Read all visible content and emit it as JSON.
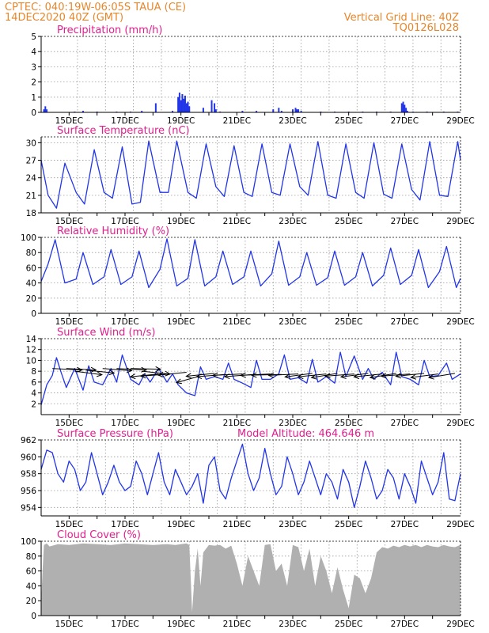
{
  "header": {
    "line1_left": "CPTEC:   040:19W-06:05S   TAUA (CE)",
    "line2_left": "14DEC2020 40Z (GMT)",
    "line2_right": "Vertical Grid Line: 40Z",
    "line3_right": "TQ0126L028"
  },
  "colors": {
    "header": "#e8862a",
    "title": "#e0208e",
    "series": "#2235e8",
    "cloud": "#b0b0b0",
    "grid": "#9a9a9a"
  },
  "x_tick_labels": [
    "15DEC",
    "17DEC",
    "19DEC",
    "21DEC",
    "23DEC",
    "25DEC",
    "27DEC",
    "29DEC"
  ],
  "chart_data": [
    {
      "type": "bar",
      "title": "Precipitation (mm/h)",
      "ylim": [
        0,
        5
      ],
      "yticks": [
        0,
        1,
        2,
        3,
        4,
        5
      ],
      "x": [
        14.1,
        14.15,
        14.2,
        15.2,
        15.5,
        16.0,
        16.7,
        17.2,
        17.6,
        18.1,
        18.7,
        18.9,
        18.95,
        19.0,
        19.05,
        19.1,
        19.15,
        19.2,
        19.25,
        19.3,
        19.8,
        20.1,
        20.2,
        20.25,
        20.4,
        21.2,
        21.7,
        22.3,
        22.5,
        22.6,
        23.0,
        23.1,
        23.15,
        23.2,
        23.3,
        24.0,
        24.5,
        25.0,
        25.5,
        26.0,
        26.5,
        26.9,
        26.95,
        27.0,
        27.05,
        27.1,
        27.3,
        27.8,
        28.4,
        28.9
      ],
      "values": [
        0.2,
        0.4,
        0.2,
        0.05,
        0.1,
        0.05,
        0.05,
        0.05,
        0.1,
        0.6,
        0.1,
        1.0,
        1.3,
        0.8,
        1.2,
        0.9,
        1.1,
        0.6,
        0.7,
        0.4,
        0.3,
        0.8,
        0.6,
        0.2,
        0.05,
        0.1,
        0.1,
        0.2,
        0.3,
        0.1,
        0.2,
        0.3,
        0.2,
        0.2,
        0.1,
        0.05,
        0.05,
        0.05,
        0.05,
        0.05,
        0.05,
        0.6,
        0.7,
        0.5,
        0.3,
        0.1,
        0.05,
        0.05,
        0.05,
        0.05
      ]
    },
    {
      "type": "line",
      "title": "Surface Temperature (nC)",
      "ylim": [
        18,
        31
      ],
      "yticks": [
        18,
        21,
        24,
        27,
        30
      ],
      "x": [
        14.0,
        14.25,
        14.55,
        14.85,
        15.25,
        15.55,
        15.9,
        16.25,
        16.55,
        16.9,
        17.25,
        17.55,
        17.85,
        18.25,
        18.55,
        18.85,
        19.25,
        19.55,
        19.9,
        20.25,
        20.55,
        20.9,
        21.25,
        21.55,
        21.9,
        22.25,
        22.55,
        22.9,
        23.25,
        23.55,
        23.9,
        24.25,
        24.55,
        24.9,
        25.25,
        25.55,
        25.9,
        26.25,
        26.55,
        26.9,
        27.25,
        27.55,
        27.9,
        28.25,
        28.55,
        28.9,
        29.0
      ],
      "values": [
        27,
        21,
        18.8,
        26.5,
        21.5,
        19.5,
        28.8,
        21.5,
        20.5,
        29.3,
        19.5,
        19.8,
        30.3,
        21.5,
        21.5,
        30.3,
        21.5,
        20.5,
        29.8,
        22.5,
        20.8,
        29.5,
        21.5,
        20.8,
        29.8,
        21.5,
        21,
        29.8,
        22.5,
        21,
        30.2,
        21,
        20.5,
        29.8,
        21.5,
        20.5,
        30,
        21.2,
        20.5,
        29.8,
        22,
        20.2,
        30.2,
        21,
        20.8,
        30.2,
        27
      ]
    },
    {
      "type": "line",
      "title": "Relative Humidity (%)",
      "ylim": [
        0,
        100
      ],
      "yticks": [
        0,
        20,
        40,
        60,
        80,
        100
      ],
      "x": [
        14.0,
        14.25,
        14.5,
        14.85,
        15.25,
        15.5,
        15.85,
        16.25,
        16.5,
        16.85,
        17.25,
        17.5,
        17.85,
        18.25,
        18.5,
        18.85,
        19.25,
        19.5,
        19.85,
        20.25,
        20.5,
        20.85,
        21.25,
        21.5,
        21.85,
        22.25,
        22.5,
        22.85,
        23.25,
        23.5,
        23.85,
        24.25,
        24.5,
        24.85,
        25.25,
        25.5,
        25.85,
        26.25,
        26.5,
        26.85,
        27.25,
        27.5,
        27.85,
        28.25,
        28.5,
        28.85,
        29.0
      ],
      "values": [
        42,
        65,
        97,
        40,
        45,
        80,
        38,
        48,
        84,
        38,
        48,
        82,
        34,
        58,
        98,
        36,
        46,
        97,
        36,
        48,
        82,
        38,
        48,
        82,
        36,
        52,
        95,
        37,
        48,
        80,
        37,
        47,
        82,
        37,
        48,
        80,
        36,
        50,
        86,
        38,
        50,
        84,
        34,
        55,
        88,
        34,
        46
      ]
    },
    {
      "type": "line",
      "title": "Surface Wind (m/s)",
      "ylim": [
        0,
        14
      ],
      "yticks": [
        2,
        4,
        6,
        8,
        10,
        12,
        14
      ],
      "x": [
        14.0,
        14.2,
        14.4,
        14.55,
        14.7,
        14.9,
        15.2,
        15.5,
        15.7,
        15.9,
        16.2,
        16.5,
        16.7,
        16.9,
        17.2,
        17.5,
        17.7,
        17.9,
        18.2,
        18.5,
        18.7,
        18.9,
        19.2,
        19.5,
        19.7,
        19.9,
        20.2,
        20.5,
        20.7,
        20.9,
        21.2,
        21.5,
        21.7,
        21.9,
        22.2,
        22.5,
        22.7,
        22.9,
        23.2,
        23.5,
        23.7,
        23.9,
        24.2,
        24.5,
        24.7,
        24.9,
        25.2,
        25.5,
        25.7,
        25.9,
        26.2,
        26.5,
        26.7,
        26.9,
        27.2,
        27.5,
        27.7,
        27.9,
        28.2,
        28.5,
        28.7,
        29.0
      ],
      "values": [
        1.8,
        5.5,
        7.2,
        10.5,
        8,
        5,
        8.5,
        4.5,
        9,
        6,
        5.5,
        8.5,
        6,
        11,
        6.5,
        5.5,
        7.5,
        6,
        8.5,
        6,
        7.5,
        5.5,
        4,
        3.5,
        8.8,
        6.5,
        7,
        6.5,
        9.5,
        6.5,
        5.8,
        5,
        10,
        6.5,
        6.5,
        7.5,
        11,
        6.5,
        6.8,
        5.8,
        10.2,
        6,
        7,
        5.8,
        11.5,
        7,
        10.8,
        6.5,
        8.5,
        6.5,
        7.8,
        5.5,
        11.5,
        7,
        6.5,
        5.5,
        10,
        7,
        7.2,
        9.5,
        6.5,
        7.5
      ],
      "vectors": [
        {
          "x": 14.4,
          "y": 8.5,
          "angle": 10
        },
        {
          "x": 14.9,
          "y": 8.5,
          "angle": 10
        },
        {
          "x": 15.2,
          "y": 8.0,
          "angle": 25
        },
        {
          "x": 15.6,
          "y": 8.2,
          "angle": 20
        },
        {
          "x": 16.2,
          "y": 8.5,
          "angle": 15
        },
        {
          "x": 16.7,
          "y": 8.5,
          "angle": 10
        },
        {
          "x": 17.2,
          "y": 8.5,
          "angle": 5
        },
        {
          "x": 17.6,
          "y": 8.0,
          "angle": 20
        },
        {
          "x": 18.2,
          "y": 7.5,
          "angle": 160
        },
        {
          "x": 18.6,
          "y": 7.5,
          "angle": 165
        },
        {
          "x": 19.2,
          "y": 7.8,
          "angle": 160
        },
        {
          "x": 19.6,
          "y": 7.0,
          "angle": 135
        },
        {
          "x": 20.2,
          "y": 7.6,
          "angle": 160
        },
        {
          "x": 20.6,
          "y": 7.4,
          "angle": 165
        },
        {
          "x": 21.2,
          "y": 7.5,
          "angle": 170
        },
        {
          "x": 21.6,
          "y": 7.4,
          "angle": 165
        },
        {
          "x": 22.2,
          "y": 7.5,
          "angle": 170
        },
        {
          "x": 22.6,
          "y": 7.4,
          "angle": 175
        },
        {
          "x": 23.2,
          "y": 7.5,
          "angle": 170
        },
        {
          "x": 23.7,
          "y": 7.6,
          "angle": 155
        },
        {
          "x": 24.2,
          "y": 7.5,
          "angle": 160
        },
        {
          "x": 24.6,
          "y": 7.6,
          "angle": 150
        },
        {
          "x": 25.2,
          "y": 7.5,
          "angle": 165
        },
        {
          "x": 25.7,
          "y": 7.6,
          "angle": 155
        },
        {
          "x": 26.2,
          "y": 7.5,
          "angle": 160
        },
        {
          "x": 26.7,
          "y": 7.6,
          "angle": 150
        },
        {
          "x": 27.2,
          "y": 7.5,
          "angle": 165
        },
        {
          "x": 27.7,
          "y": 7.6,
          "angle": 160
        },
        {
          "x": 28.2,
          "y": 7.5,
          "angle": 155
        },
        {
          "x": 28.8,
          "y": 7.6,
          "angle": 150
        }
      ]
    },
    {
      "type": "line",
      "title": "Surface Pressure (hPa)",
      "annotation": "Model Altitude: 464.646 m",
      "ylim": [
        953,
        962
      ],
      "yticks": [
        954,
        956,
        958,
        960,
        962
      ],
      "x": [
        14.0,
        14.2,
        14.4,
        14.6,
        14.8,
        15.0,
        15.2,
        15.4,
        15.6,
        15.8,
        16.0,
        16.2,
        16.4,
        16.6,
        16.8,
        17.0,
        17.2,
        17.4,
        17.6,
        17.8,
        18.0,
        18.2,
        18.4,
        18.6,
        18.8,
        19.0,
        19.2,
        19.4,
        19.6,
        19.8,
        20.0,
        20.2,
        20.4,
        20.6,
        20.8,
        21.0,
        21.2,
        21.4,
        21.6,
        21.8,
        22.0,
        22.2,
        22.4,
        22.6,
        22.8,
        23.0,
        23.2,
        23.4,
        23.6,
        23.8,
        24.0,
        24.2,
        24.4,
        24.6,
        24.8,
        25.0,
        25.2,
        25.4,
        25.6,
        25.8,
        26.0,
        26.2,
        26.4,
        26.6,
        26.8,
        27.0,
        27.2,
        27.4,
        27.6,
        27.8,
        28.0,
        28.2,
        28.4,
        28.6,
        28.8,
        29.0
      ],
      "values": [
        958.5,
        960.8,
        960.5,
        958,
        957,
        959.5,
        958.5,
        956,
        957,
        960.5,
        958,
        955.5,
        957,
        959,
        957,
        956,
        956.5,
        959.5,
        958,
        955.5,
        958,
        960.5,
        957,
        955.5,
        958.5,
        957,
        955.5,
        956.5,
        958,
        954.5,
        959,
        960,
        956,
        955,
        957.5,
        959.5,
        961.5,
        958,
        956,
        957.5,
        961,
        958,
        955.5,
        956.5,
        960,
        958,
        955.5,
        957,
        959.5,
        957.5,
        955.5,
        958,
        957,
        955,
        958.5,
        957,
        954,
        956.5,
        959.5,
        957.5,
        955,
        956,
        958.5,
        957.5,
        955,
        958,
        956.5,
        954.5,
        959.5,
        957.5,
        955.5,
        957,
        960.5,
        955,
        954.8,
        958
      ]
    },
    {
      "type": "area",
      "title": "Cloud Cover (%)",
      "ylim": [
        0,
        100
      ],
      "yticks": [
        0,
        20,
        40,
        60,
        80,
        100
      ],
      "x": [
        14.0,
        14.05,
        14.1,
        14.2,
        14.3,
        14.6,
        15.0,
        15.5,
        16.0,
        16.5,
        17.0,
        17.5,
        18.0,
        18.5,
        18.8,
        19.0,
        19.2,
        19.3,
        19.4,
        19.5,
        19.6,
        19.7,
        19.8,
        20.0,
        20.2,
        20.4,
        20.6,
        20.8,
        21.0,
        21.2,
        21.4,
        21.6,
        21.8,
        22.0,
        22.2,
        22.4,
        22.6,
        22.8,
        23.0,
        23.2,
        23.4,
        23.6,
        23.8,
        24.0,
        24.2,
        24.4,
        24.6,
        24.8,
        25.0,
        25.2,
        25.4,
        25.6,
        25.8,
        26.0,
        26.2,
        26.4,
        26.6,
        26.8,
        27.0,
        27.2,
        27.4,
        27.6,
        27.8,
        28.0,
        28.2,
        28.4,
        28.6,
        28.8,
        29.0
      ],
      "values": [
        20,
        60,
        95,
        97,
        93,
        96,
        95,
        97,
        96,
        95,
        97,
        96,
        95,
        96,
        95,
        96,
        97,
        95,
        5,
        60,
        90,
        40,
        85,
        95,
        94,
        95,
        90,
        94,
        70,
        40,
        80,
        60,
        40,
        95,
        96,
        60,
        70,
        40,
        95,
        92,
        60,
        90,
        40,
        80,
        60,
        30,
        65,
        35,
        10,
        55,
        50,
        30,
        50,
        85,
        92,
        90,
        94,
        92,
        95,
        93,
        95,
        92,
        95,
        93,
        92,
        95,
        93,
        92,
        95
      ]
    }
  ]
}
